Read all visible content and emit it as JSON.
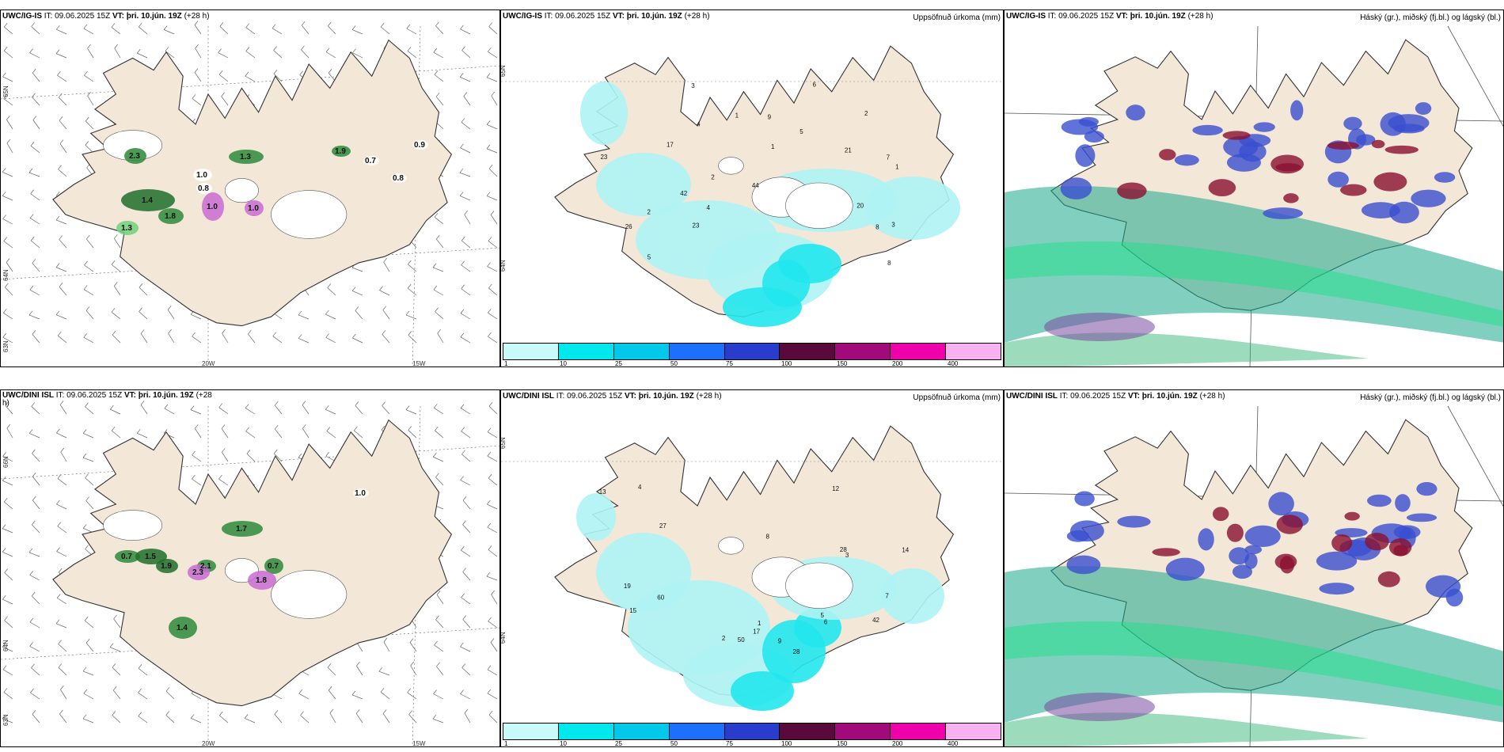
{
  "colors": {
    "land": "#f3e7d8",
    "coast": "#333333",
    "precip_low": "#aef3f5",
    "precip_mid": "#22e7ee",
    "cloud_high": "#1aa88a",
    "cloud_mid": "#3a4fd0",
    "cloud_low": "#8a1030"
  },
  "panels": {
    "top_left": {
      "model": "UWC/IG-IS",
      "run": "IT: 09.06.2025 15Z",
      "vt_label": "VT:",
      "vt": "þri. 10.jún. 19Z",
      "lead": "(+28 h)",
      "lat_labels": [
        "65N",
        "64N",
        "63N"
      ],
      "lon_labels": [
        "20W",
        "15W"
      ],
      "values": [
        "1.9",
        "0.7",
        "0.9",
        "0.8",
        "1.0",
        "0.8",
        "1.3",
        "1.4",
        "1.8",
        "1.3",
        "1.0",
        "1.0",
        "2.3"
      ]
    },
    "top_mid": {
      "model": "UWC/IG-IS",
      "run": "IT: 09.06.2025 15Z",
      "vt_label": "VT:",
      "vt": "þri. 10.jún. 19Z",
      "lead": "(+28 h)",
      "param": "Uppsöfnuð úrkoma (mm)",
      "lat_labels": [
        "65N",
        "64N"
      ],
      "values": [
        "4",
        "7",
        "5",
        "1",
        "2",
        "3",
        "4",
        "6",
        "8",
        "2",
        "17",
        "20",
        "21",
        "23",
        "26",
        "44",
        "42",
        "23",
        "3",
        "1",
        "8",
        "9",
        "5",
        "2",
        "1"
      ]
    },
    "top_right": {
      "model": "UWC/IG-IS",
      "run": "IT: 09.06.2025 15Z",
      "vt_label": "VT:",
      "vt": "þri. 10.jún. 19Z",
      "lead": "(+28 h)",
      "param": "Háský (gr.), miðský (fj.bl.) og lágský (bl.)"
    },
    "bot_left": {
      "model": "UWC/DINI ISL",
      "run": "IT: 09.06.2025 15Z",
      "vt_label": "VT:",
      "vt": "þri. 10.jún. 19Z",
      "lead": "(+28",
      "lead2": "h)",
      "lat_labels": [
        "66N",
        "64N",
        "63N"
      ],
      "lon_labels": [
        "20W",
        "15W"
      ],
      "values": [
        "1.0",
        "0.7",
        "1.9",
        "2.1",
        "0.7",
        "1.5",
        "1.4",
        "2.3",
        "1.8",
        "1.7"
      ]
    },
    "bot_mid": {
      "model": "UWC/DINI ISL",
      "run": "IT: 09.06.2025 15Z",
      "vt_label": "VT:",
      "vt": "þri. 10.jún. 19Z",
      "lead": "(+28 h)",
      "param": "Uppsöfnuð úrkoma (mm)",
      "lat_labels": [
        "65N",
        "64N"
      ],
      "values": [
        "2",
        "1",
        "8",
        "13",
        "14",
        "15",
        "17",
        "19",
        "28",
        "27",
        "60",
        "42",
        "50",
        "28",
        "12",
        "9",
        "5",
        "6",
        "7",
        "3",
        "4"
      ]
    },
    "bot_right": {
      "model": "UWC/DINI ISL",
      "run": "IT: 09.06.2025 15Z",
      "vt_label": "VT:",
      "vt": "þri. 10.jún. 19Z",
      "lead": "(+28 h)",
      "param": "Háský (gr.), miðský (fj.bl.) og lágský (bl.)"
    }
  },
  "colorbar": {
    "ticks": [
      "1",
      "10",
      "25",
      "50",
      "75",
      "100",
      "150",
      "200",
      "400"
    ],
    "colors": [
      "#c8fafa",
      "#00e8ee",
      "#00c8e8",
      "#1f6fff",
      "#2a3ccc",
      "#5a0a3a",
      "#a00a7a",
      "#ee00aa",
      "#f7b0f0"
    ]
  }
}
